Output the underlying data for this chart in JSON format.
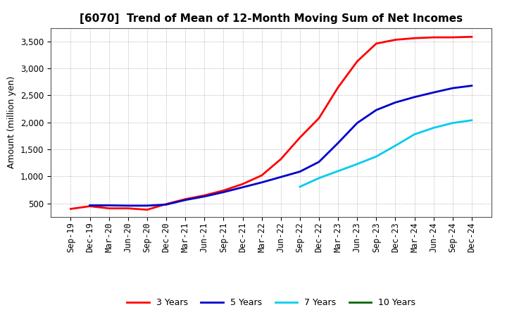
{
  "title": "[6070]  Trend of Mean of 12-Month Moving Sum of Net Incomes",
  "ylabel": "Amount (million yen)",
  "background_color": "#ffffff",
  "grid_color": "#999999",
  "title_fontsize": 11,
  "axis_label_fontsize": 9,
  "tick_fontsize": 8.5,
  "x_labels": [
    "Sep-19",
    "Dec-19",
    "Mar-20",
    "Jun-20",
    "Sep-20",
    "Dec-20",
    "Mar-21",
    "Jun-21",
    "Sep-21",
    "Dec-21",
    "Mar-22",
    "Jun-22",
    "Sep-22",
    "Dec-22",
    "Mar-23",
    "Jun-23",
    "Sep-23",
    "Dec-23",
    "Mar-24",
    "Jun-24",
    "Sep-24",
    "Dec-24"
  ],
  "ylim": [
    250,
    3750
  ],
  "yticks": [
    500,
    1000,
    1500,
    2000,
    2500,
    3000,
    3500
  ],
  "series_3y": [
    400,
    450,
    410,
    410,
    385,
    490,
    580,
    650,
    740,
    860,
    1020,
    1320,
    1720,
    2080,
    2650,
    3130,
    3460,
    3530,
    3560,
    3575,
    3575,
    3585
  ],
  "series_5y": [
    null,
    465,
    465,
    460,
    460,
    480,
    565,
    630,
    710,
    800,
    890,
    990,
    1090,
    1270,
    1620,
    1990,
    2230,
    2370,
    2470,
    2555,
    2635,
    2680
  ],
  "series_7y": [
    null,
    null,
    null,
    null,
    null,
    null,
    null,
    null,
    null,
    null,
    null,
    null,
    810,
    970,
    1100,
    1230,
    1370,
    1570,
    1780,
    1900,
    1990,
    2040
  ],
  "series_10y": [
    null,
    null,
    null,
    null,
    null,
    null,
    null,
    null,
    null,
    null,
    null,
    null,
    null,
    null,
    null,
    null,
    null,
    null,
    null,
    null,
    null,
    null
  ],
  "legend_colors": [
    "#ff0000",
    "#0000cc",
    "#00ccee",
    "#006600"
  ],
  "legend_labels": [
    "3 Years",
    "5 Years",
    "7 Years",
    "10 Years"
  ]
}
